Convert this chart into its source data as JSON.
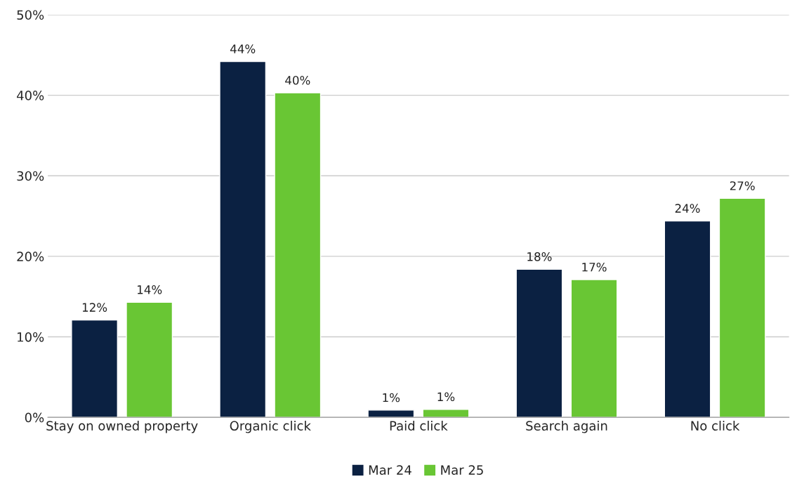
{
  "chart_data": {
    "type": "bar",
    "categories": [
      "Stay on owned property",
      "Organic click",
      "Paid click",
      "Search again",
      "No click"
    ],
    "series": [
      {
        "name": "Mar 24",
        "color": "#0b2142",
        "values": [
          12.1,
          44.2,
          0.9,
          18.4,
          24.4
        ],
        "value_labels": [
          "12%",
          "44%",
          "1%",
          "18%",
          "24%"
        ]
      },
      {
        "name": "Mar 25",
        "color": "#69c634",
        "values": [
          14.3,
          40.3,
          1.0,
          17.1,
          27.2
        ],
        "value_labels": [
          "14%",
          "40%",
          "1%",
          "17%",
          "27%"
        ]
      }
    ],
    "ylim": [
      0,
      50
    ],
    "yticks": [
      {
        "value": 0,
        "label": "0%"
      },
      {
        "value": 10,
        "label": "10%"
      },
      {
        "value": 20,
        "label": "20%"
      },
      {
        "value": 30,
        "label": "30%"
      },
      {
        "value": 40,
        "label": "40%"
      },
      {
        "value": 50,
        "label": "50%"
      }
    ],
    "grid": "y",
    "legend": "bottom"
  }
}
